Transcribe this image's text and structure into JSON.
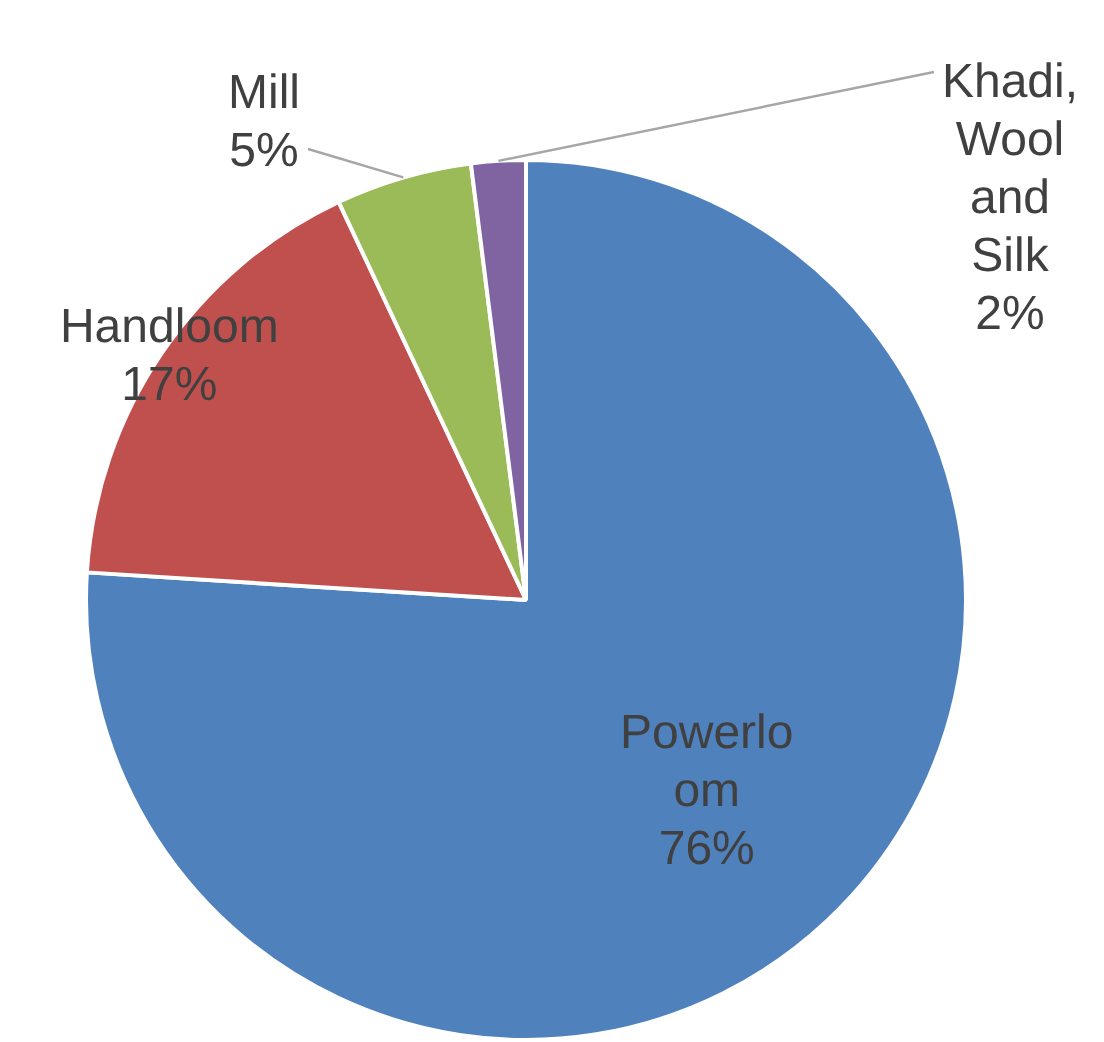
{
  "chart_data": {
    "type": "pie",
    "categories": [
      "Powerloom",
      "Handloom",
      "Mill",
      "Khadi, Wool and Silk"
    ],
    "values": [
      76,
      17,
      5,
      2
    ],
    "colors": [
      "#4f81bd",
      "#c0504d",
      "#9bbb59",
      "#8064a2"
    ],
    "value_labels": [
      "76%",
      "17%",
      "5%",
      "2%"
    ],
    "legend": false
  }
}
